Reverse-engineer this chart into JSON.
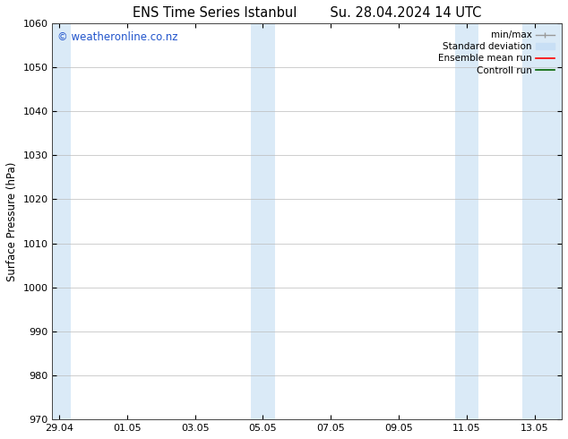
{
  "title_left": "ENS Time Series Istanbul",
  "title_right": "Su. 28.04.2024 14 UTC",
  "ylabel": "Surface Pressure (hPa)",
  "ylim": [
    970,
    1060
  ],
  "yticks": [
    970,
    980,
    990,
    1000,
    1010,
    1020,
    1030,
    1040,
    1050,
    1060
  ],
  "xtick_labels": [
    "29.04",
    "01.05",
    "03.05",
    "05.05",
    "07.05",
    "09.05",
    "11.05",
    "13.05"
  ],
  "xtick_positions": [
    0,
    2,
    4,
    6,
    8,
    10,
    12,
    14
  ],
  "xlim": [
    -0.2,
    14.8
  ],
  "shaded_bands": [
    {
      "x_start": -0.2,
      "x_end": 0.35,
      "color": "#daeaf7"
    },
    {
      "x_start": 5.65,
      "x_end": 6.35,
      "color": "#daeaf7"
    },
    {
      "x_start": 11.65,
      "x_end": 12.35,
      "color": "#daeaf7"
    },
    {
      "x_start": 13.65,
      "x_end": 14.8,
      "color": "#daeaf7"
    }
  ],
  "watermark_text": "© weatheronline.co.nz",
  "watermark_color": "#2255cc",
  "watermark_fontsize": 8.5,
  "bg_color": "#ffffff",
  "plot_bg_color": "#ffffff",
  "grid_color": "#bbbbbb",
  "title_fontsize": 10.5,
  "label_fontsize": 8.5,
  "tick_fontsize": 8
}
